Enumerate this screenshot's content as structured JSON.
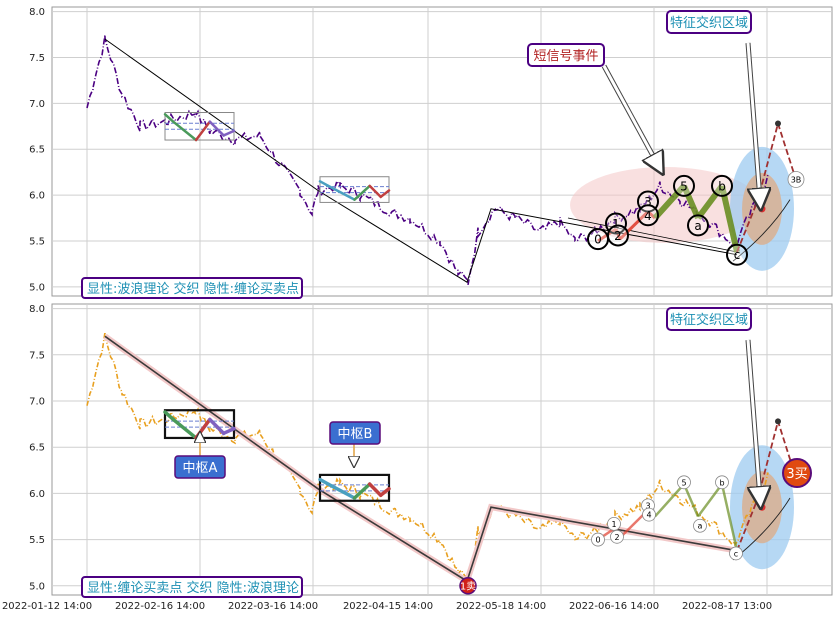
{
  "chart_data": [
    {
      "type": "line",
      "panel": "top",
      "ylim": [
        4.9,
        8.05
      ],
      "yticks": [
        "5.0",
        "5.5",
        "6.0",
        "6.5",
        "7.0",
        "7.5",
        "8.0"
      ],
      "grid": true,
      "legend_box": "显性:波浪理论 交织 隐性:缠论买卖点",
      "callouts": [
        "短信号事件",
        "特征交织区域"
      ],
      "wave_labels": [
        "0",
        "1",
        "2",
        "3",
        "4",
        "5",
        "a",
        "b",
        "c",
        "3B"
      ],
      "series": [
        {
          "values": [
            6.95,
            7.2,
            7.7,
            7.1,
            6.75,
            6.8,
            6.9,
            6.7,
            6.6,
            6.65,
            6.3,
            6.05,
            5.8,
            6.05,
            6.1,
            6.0,
            5.8,
            5.75,
            5.5,
            5.15,
            5.05,
            5.6,
            5.85,
            5.75,
            5.6,
            5.7,
            5.5,
            5.6,
            5.75,
            5.85,
            6.1,
            5.95,
            5.7,
            5.45,
            5.9,
            6.2
          ]
        },
        {
          "values": [
            7.7,
            6.05,
            5.05,
            5.85,
            5.35
          ]
        }
      ]
    },
    {
      "type": "line",
      "panel": "bottom",
      "ylim": [
        4.9,
        8.05
      ],
      "yticks": [
        "5.0",
        "5.5",
        "6.0",
        "6.5",
        "7.0",
        "7.5",
        "8.0"
      ],
      "grid": true,
      "legend_box": "显性:缠论买卖点 交织 隐性:波浪理论",
      "callouts": [
        "特征交织区域",
        "中枢A",
        "中枢B"
      ],
      "point_labels": [
        "1卖",
        "3买"
      ],
      "wave_labels": [
        "0",
        "1",
        "2",
        "3",
        "4",
        "5",
        "a",
        "b",
        "c"
      ],
      "series": [
        {
          "values": [
            6.95,
            7.2,
            7.7,
            7.1,
            6.75,
            6.8,
            6.9,
            6.7,
            6.6,
            6.65,
            6.3,
            6.05,
            5.8,
            6.05,
            6.1,
            6.0,
            5.8,
            5.75,
            5.5,
            5.15,
            5.05,
            5.6,
            5.85,
            5.75,
            5.6,
            5.7,
            5.5,
            5.6,
            5.75,
            5.85,
            6.1,
            5.95,
            5.7,
            5.45,
            5.9,
            6.2
          ]
        },
        {
          "values": [
            7.7,
            6.05,
            5.05,
            5.85,
            5.38
          ]
        }
      ]
    }
  ],
  "x_axis": {
    "tick_labels": [
      "2022-01-12 14:00",
      "2022-02-16 14:00",
      "2022-03-16 14:00",
      "2022-04-15 14:00",
      "2022-05-18 14:00",
      "2022-06-16 14:00",
      "2022-08-17 13:00"
    ]
  },
  "colors": {
    "price_top": "#4b0082",
    "price_bottom": "#e8a020",
    "trend": "#000000",
    "accent_red": "#b22222",
    "box_purple": "#4b0082",
    "callout_text": "#1e90b4",
    "highlight_blue": "#9ecbf0",
    "highlight_orange": "#d9b090",
    "highlight_pink": "#f4c6c6",
    "pivot_label_bg": "#3a6fd0"
  }
}
